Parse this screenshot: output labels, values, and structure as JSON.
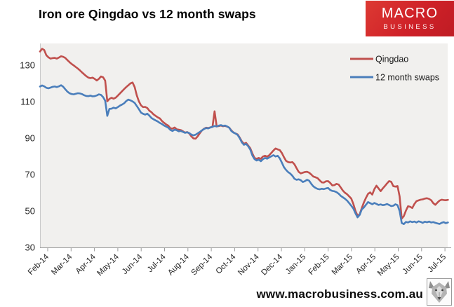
{
  "header": {
    "title": "Iron ore Qingdao vs 12 month swaps",
    "logo_line1": "MACRO",
    "logo_line2": "BUSINESS"
  },
  "footer": {
    "url": "www.macrobusiness.com.au"
  },
  "chart_data": {
    "type": "line",
    "title": "Iron ore Qingdao vs 12 month swaps",
    "xlabel": "",
    "ylabel": "",
    "x_categories": [
      "Feb-14",
      "Mar-14",
      "Apr-14",
      "May-14",
      "Jun-14",
      "Jul-14",
      "Aug-14",
      "Sep-14",
      "Oct-14",
      "Nov-14",
      "Dec-14",
      "Jan-15",
      "Feb-15",
      "Mar-15",
      "Apr-15",
      "May-15",
      "Jun-15",
      "Jul-15"
    ],
    "y_ticks": [
      30,
      50,
      70,
      90,
      110,
      130
    ],
    "ylim": [
      30,
      143
    ],
    "grid": false,
    "legend_position": "inside-top-right",
    "legend": [
      "Qingdao",
      "12 month swaps"
    ],
    "sampling_note": "values sampled ~weekly; t in months after Feb-14 tick, t0 + i*dt",
    "series": [
      {
        "name": "Qingdao",
        "color": "#c0504d",
        "t0": -0.33,
        "dt": 0.09,
        "values": [
          137.5,
          139,
          138.3,
          135.5,
          134.3,
          133.6,
          133.9,
          134,
          133.6,
          134.2,
          134.9,
          134.6,
          134,
          132.8,
          131.7,
          130.7,
          129.9,
          129,
          128.1,
          127.1,
          126,
          125,
          124,
          123.2,
          122.9,
          123.2,
          122.5,
          121.6,
          122.5,
          123.8,
          123.4,
          121.5,
          110.2,
          111.5,
          112.1,
          111.6,
          112.2,
          113.3,
          114.5,
          115.7,
          116.9,
          118,
          119,
          120,
          120.5,
          118,
          113.5,
          110.2,
          108,
          107,
          107.1,
          106.5,
          105,
          104.2,
          103,
          102.2,
          101.4,
          100.8,
          99.4,
          98.4,
          97.5,
          96.8,
          95.4,
          95.2,
          95.8,
          94.8,
          94.6,
          94.4,
          93.7,
          93,
          93.3,
          92.5,
          90.9,
          89.8,
          89.7,
          91,
          92.7,
          94.2,
          95.1,
          95.7,
          95.5,
          95.9,
          96.1,
          104.7,
          96.4,
          96.6,
          96.9,
          96.5,
          96.7,
          96.3,
          95.7,
          94.2,
          93.1,
          92.5,
          92,
          90.2,
          88.1,
          86.9,
          87.4,
          85.9,
          84.4,
          81.5,
          79.1,
          78.6,
          79.1,
          78.6,
          79.9,
          80.3,
          79.8,
          80.6,
          81.9,
          83.2,
          84.3,
          83.8,
          83.4,
          81.8,
          79.5,
          77.5,
          76.8,
          76.6,
          76.8,
          75.6,
          73.5,
          71.5,
          70.6,
          71,
          71.4,
          71.5,
          71,
          70,
          68.9,
          68.5,
          68,
          66.8,
          65.7,
          65.6,
          66.3,
          66.4,
          65.4,
          64,
          64.2,
          64.9,
          64.5,
          62.9,
          61.2,
          60,
          59.2,
          58,
          56.8,
          53.8,
          50,
          47.4,
          48.2,
          51.6,
          54.6,
          57.2,
          59.4,
          60.2,
          59,
          62,
          63.9,
          62.4,
          60.9,
          62.4,
          63.7,
          65.1,
          66.4,
          66,
          63.6,
          63.4,
          63.7,
          58,
          45.8,
          47.2,
          50.2,
          52.6,
          52.3,
          51.6,
          53.8,
          55.4,
          55.8,
          56.2,
          56.4,
          56.8,
          57,
          56.6,
          55.9,
          54.3,
          53.4,
          54.6,
          55.7,
          56.2,
          56,
          55.9,
          56.1
        ]
      },
      {
        "name": "12 month swaps",
        "color": "#4a7ebb",
        "t0": -0.33,
        "dt": 0.09,
        "values": [
          118.3,
          118.9,
          118.4,
          117.6,
          117.3,
          117.7,
          118.1,
          118.3,
          118,
          118.4,
          119,
          118.2,
          116.8,
          115.5,
          114.6,
          114.2,
          114,
          114.3,
          114.6,
          114.5,
          114.1,
          113.5,
          113.1,
          113,
          113.3,
          112.9,
          113,
          113.4,
          114,
          113.7,
          112.5,
          110.5,
          102.2,
          106,
          106.1,
          106.7,
          106.3,
          107,
          107.8,
          108.4,
          109.1,
          110.3,
          111.1,
          110.7,
          110.1,
          109.3,
          107.6,
          105.9,
          104,
          103.3,
          102.9,
          103.4,
          102.3,
          101,
          100.3,
          99.7,
          99.1,
          98.3,
          97.7,
          96.9,
          96.3,
          95.7,
          94.5,
          93.9,
          94.6,
          94.3,
          93.7,
          93.9,
          93.4,
          92.9,
          93.2,
          92.7,
          91.9,
          91.5,
          91.9,
          92.6,
          93.4,
          94.2,
          95,
          95.5,
          95.3,
          95.8,
          96.2,
          96.6,
          96.4,
          96.8,
          97.1,
          96.7,
          96.9,
          96.4,
          95.7,
          93.9,
          93,
          92.5,
          91.7,
          89.9,
          87.6,
          86.3,
          86.8,
          85.5,
          83.7,
          80.4,
          78.5,
          77.7,
          78.2,
          77.3,
          78.4,
          79.1,
          78.7,
          79.4,
          80,
          80.6,
          79.9,
          80.3,
          78.9,
          76.5,
          74,
          72.5,
          71.3,
          70.5,
          69.3,
          67.7,
          67.1,
          67.4,
          66.9,
          65.9,
          66.4,
          67.1,
          66.6,
          64.9,
          63.5,
          62.7,
          62.1,
          61.9,
          62.2,
          62,
          62.4,
          62.6,
          61.5,
          61,
          60.8,
          60.3,
          59.5,
          58.3,
          57.5,
          56.7,
          55.7,
          54.3,
          52.9,
          51.3,
          48.7,
          46.5,
          47.9,
          50.9,
          51.9,
          53.4,
          54.9,
          54.3,
          53.7,
          54.4,
          53.9,
          53.3,
          53.6,
          53.2,
          53.4,
          53.8,
          53.3,
          52.7,
          52.9,
          53.7,
          53.2,
          50,
          43.4,
          42.8,
          44,
          43.7,
          44.3,
          43.9,
          44.2,
          43.7,
          44.3,
          44,
          43.5,
          44.1,
          43.8,
          44.2,
          43.7,
          43.9,
          43.5,
          43.2,
          42.9,
          43.5,
          43.9,
          43.3,
          43.7
        ]
      }
    ],
    "colors": {
      "plot_background": "#f1f0ee",
      "axis_line": "#9b9b9b",
      "left_axis_line": "#c9c9c9",
      "tick_label": "#262626",
      "logo_red": "#cf2128"
    }
  }
}
